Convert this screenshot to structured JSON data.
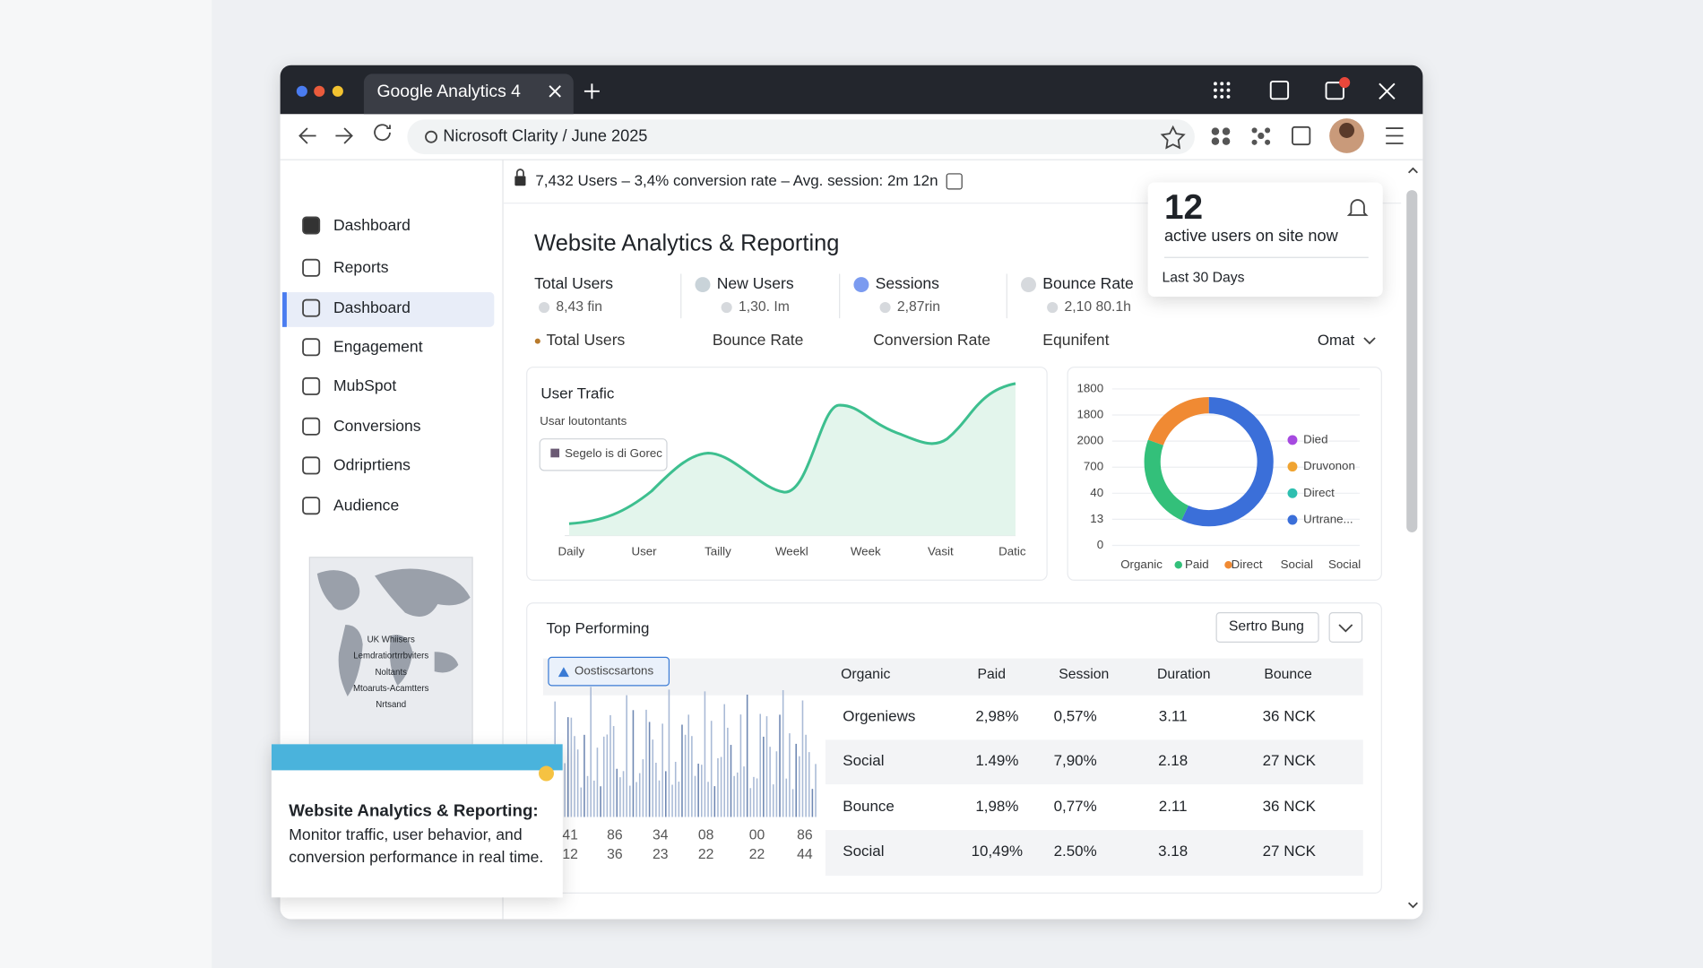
{
  "browser": {
    "tab_title": "Google Analytics 4",
    "address": "Nicrosoft Clarity / June 2025"
  },
  "sidebar": {
    "items": [
      "Dashboard",
      "Reports",
      "Dashboard",
      "Engagement",
      "MubSpot",
      "Conversions",
      "Odriprtiens",
      "Audience"
    ],
    "map_labels": [
      "UK Whiisers",
      "Lemdratiortrrbviters",
      "Noltants",
      "Mtoaruts-Acamtters",
      "Nrtsand"
    ]
  },
  "summary_bar": "7,432 Users – 3,4% conversion rate – Avg. session: 2m 12n",
  "live_card": {
    "count": "12",
    "label": "active users on site now",
    "period": "Last 30 Days"
  },
  "main": {
    "title": "Website Analytics & Reporting",
    "metrics": [
      {
        "label": "Total Users",
        "value": "8,43 fin"
      },
      {
        "label": "New Users",
        "value": "1,30. Im"
      },
      {
        "label": "Sessions",
        "value": "2,87rin"
      },
      {
        "label": "Bounce Rate",
        "value": "2,10 80.1h"
      }
    ],
    "tabs": [
      "Total Users",
      "Bounce Rate",
      "Conversion Rate",
      "Equnifent"
    ],
    "dropdown": "Omat"
  },
  "traffic_chart": {
    "title": "User Trafic",
    "subtitle": "Usar loutontants",
    "legend": "Segelo is di Gorec",
    "x_labels": [
      "Daily",
      "User",
      "Tailly",
      "Weekl",
      "Week",
      "Vasit",
      "Datic"
    ]
  },
  "donut_chart": {
    "y_labels": [
      "1800",
      "1800",
      "2000",
      "700",
      "40",
      "13",
      "0"
    ],
    "legend": [
      "Died",
      "Druvonon",
      "Direct",
      "Urtrane..."
    ],
    "x_labels": [
      "Organic",
      "Paid",
      "Direct",
      "Social",
      "Social"
    ]
  },
  "top_performing": {
    "title": "Top Performing",
    "button": "Sertro Bung",
    "badge": "Oostiscsartons",
    "columns": [
      "Organic",
      "Paid",
      "Session",
      "Duration",
      "Bounce"
    ],
    "rows": [
      [
        "Orgeniews",
        "2,98%",
        "0,57%",
        "3.11",
        "36 NCK"
      ],
      [
        "Social",
        "1.49%",
        "7,90%",
        "2.18",
        "27 NCK"
      ],
      [
        "Bounce",
        "1,98%",
        "0,77%",
        "2.11",
        "36 NCK"
      ],
      [
        "Social",
        "10,49%",
        "2.50%",
        "3.18",
        "27 NCK"
      ]
    ],
    "bar_labels": [
      [
        "41",
        "86",
        "34",
        "08",
        "00",
        "86"
      ],
      [
        "12",
        "36",
        "23",
        "22",
        "22",
        "44"
      ]
    ]
  },
  "tooltip": {
    "title": "Website Analytics & Reporting:",
    "body_lines": [
      "Monitor traffic, user behavior, and",
      "conversion performance in real time."
    ]
  }
}
